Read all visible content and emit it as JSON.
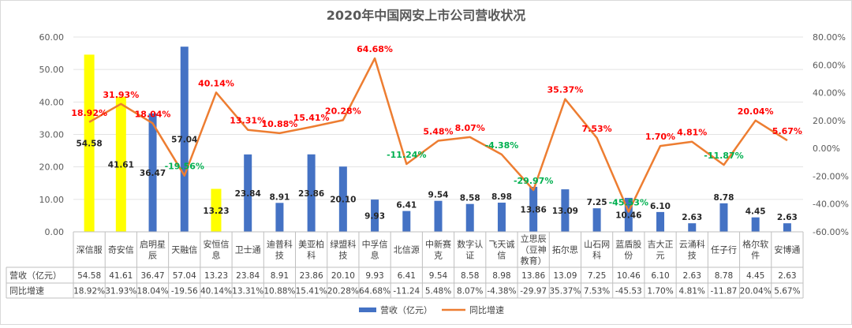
{
  "chart_data": {
    "type": "bar",
    "title": "2020年中国网安上市公司营收状况",
    "categories": [
      [
        "深信服"
      ],
      [
        "奇安信"
      ],
      [
        "启明星",
        "辰"
      ],
      [
        "天融信"
      ],
      [
        "安恒信",
        "息"
      ],
      [
        "卫士通"
      ],
      [
        "迪普科",
        "技"
      ],
      [
        "美亚柏",
        "科"
      ],
      [
        "绿盟科",
        "技"
      ],
      [
        "中孚信",
        "息"
      ],
      [
        "北信源"
      ],
      [
        "中新赛",
        "克"
      ],
      [
        "数字认",
        "证"
      ],
      [
        "飞天诚",
        "信"
      ],
      [
        "立思辰",
        "（豆神",
        "教育）"
      ],
      [
        "拓尔思"
      ],
      [
        "山石网",
        "科"
      ],
      [
        "蓝盾股",
        "份"
      ],
      [
        "吉大正",
        "元"
      ],
      [
        "云涌科",
        "技"
      ],
      [
        "任子行"
      ],
      [
        "格尔软",
        "件"
      ],
      [
        "安博通"
      ]
    ],
    "series": [
      {
        "name": "营收（亿元）",
        "type": "bar",
        "axis": "left",
        "color": "#4472C4",
        "values": [
          54.58,
          41.61,
          36.47,
          57.04,
          13.23,
          23.84,
          8.91,
          23.86,
          20.1,
          9.93,
          6.41,
          9.54,
          8.58,
          8.98,
          13.86,
          13.09,
          7.25,
          10.46,
          6.1,
          2.63,
          8.78,
          4.45,
          2.63
        ],
        "labels": [
          "54.58",
          "41.61",
          "36.47",
          "57.04",
          "13.23",
          "23.84",
          "8.91",
          "23.86",
          "20.10",
          "9.93",
          "6.41",
          "9.54",
          "8.58",
          "8.98",
          "13.86",
          "13.09",
          "7.25",
          "10.46",
          "6.10",
          "2.63",
          "8.78",
          "4.45",
          "2.63"
        ],
        "highlight_indices": [
          0,
          1,
          4
        ],
        "highlight_color": "#FFFF00"
      },
      {
        "name": "同比增速",
        "type": "line",
        "axis": "right",
        "color": "#ED7D31",
        "values": [
          18.92,
          31.93,
          18.04,
          -19.56,
          40.14,
          13.31,
          10.88,
          15.41,
          20.28,
          64.68,
          -11.24,
          5.48,
          8.07,
          -4.38,
          -29.97,
          35.37,
          7.53,
          -45.53,
          1.7,
          4.81,
          -11.87,
          20.04,
          5.67
        ],
        "labels": [
          "18.92%",
          "31.93%",
          "18.04%",
          "-19.56%",
          "40.14%",
          "13.31%",
          "10.88%",
          "15.41%",
          "20.28%",
          "64.68%",
          "-11.24%",
          "5.48%",
          "8.07%",
          "-4.38%",
          "-29.97%",
          "35.37%",
          "7.53%",
          "-45.53%",
          "1.70%",
          "4.81%",
          "-11.87%",
          "20.04%",
          "5.67%"
        ],
        "positive_label_color": "#FF0000",
        "negative_label_color": "#00B050"
      }
    ],
    "left_axis": {
      "range": [
        0,
        60
      ],
      "ticks": [
        0,
        10,
        20,
        30,
        40,
        50,
        60
      ],
      "tick_labels": [
        "0.00",
        "10.00",
        "20.00",
        "30.00",
        "40.00",
        "50.00",
        "60.00"
      ]
    },
    "right_axis": {
      "range": [
        -60,
        80
      ],
      "ticks": [
        -60,
        -40,
        -20,
        0,
        20,
        40,
        60,
        80
      ],
      "tick_labels": [
        "-60.00%",
        "-40.00%",
        "-20.00%",
        "0.00%",
        "20.00%",
        "40.00%",
        "60.00%",
        "80.00%"
      ]
    },
    "grid": true,
    "legend_position": "bottom",
    "data_table": {
      "rows": [
        {
          "label": "营收（亿元）",
          "values": [
            "54.58",
            "41.61",
            "36.47",
            "57.04",
            "13.23",
            "23.84",
            "8.91",
            "23.86",
            "20.10",
            "9.93",
            "6.41",
            "9.54",
            "8.58",
            "8.98",
            "13.86",
            "13.09",
            "7.25",
            "10.46",
            "6.10",
            "2.63",
            "8.78",
            "4.45",
            "2.63"
          ]
        },
        {
          "label": "同比增速",
          "values": [
            "18.92%",
            "31.93%",
            "18.04%",
            "-19.56",
            "40.14%",
            "13.31%",
            "10.88%",
            "15.41%",
            "20.28%",
            "64.68%",
            "-11.24",
            "5.48%",
            "8.07%",
            "-4.38%",
            "-29.97",
            "35.37%",
            "7.53%",
            "-45.53",
            "1.70%",
            "4.81%",
            "-11.87",
            "20.04%",
            "5.67%"
          ]
        }
      ]
    }
  }
}
